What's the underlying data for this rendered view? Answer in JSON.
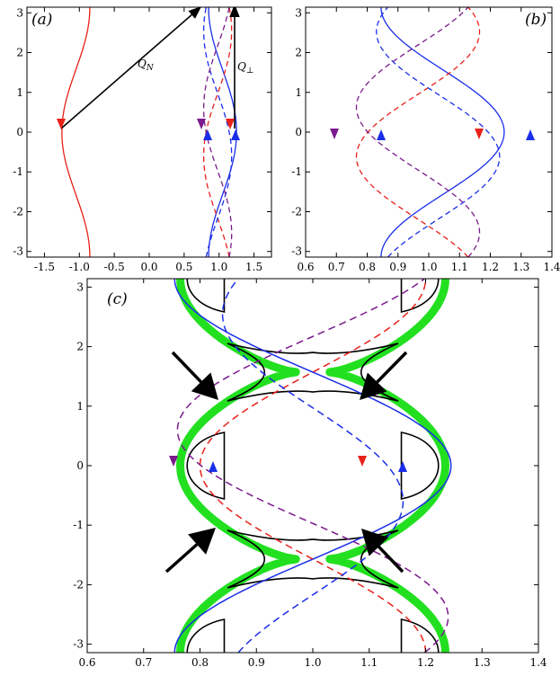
{
  "colors": {
    "red": "#e8201a",
    "blue": "#1a2ee8",
    "purple": "#7a1a8c",
    "green": "#22e020",
    "black": "#000000"
  },
  "chart_data": [
    {
      "id": "a",
      "type": "line",
      "panel_label": "(a)",
      "xlim": [
        -1.75,
        1.75
      ],
      "ylim": [
        -3.14159,
        3.14159
      ],
      "xticks": [
        "-1.5",
        "-1.0",
        "-0.5",
        "0.0",
        "0.5",
        "1.0",
        "1.5"
      ],
      "xtick_values": [
        -1.5,
        -1.0,
        -0.5,
        0.0,
        0.5,
        1.0,
        1.5
      ],
      "yticks": [
        "-3",
        "-2",
        "-1",
        "0",
        "1",
        "2",
        "3"
      ],
      "ytick_values": [
        -3,
        -2,
        -1,
        0,
        1,
        2,
        3
      ],
      "annotations": [
        "Q",
        "N",
        "Q",
        "⊥"
      ],
      "series": [
        {
          "color": "red",
          "style": "solid",
          "center": -1.05,
          "amp": 0.2,
          "phase": 3.14159
        },
        {
          "color": "blue",
          "style": "solid",
          "center": 1.05,
          "amp": 0.2,
          "phase": 0
        },
        {
          "color": "red",
          "style": "dashed",
          "center": 0.98,
          "amp": 0.2,
          "phase": 3.14159,
          "shift": 0.6
        },
        {
          "color": "blue",
          "style": "dashed",
          "center": 0.98,
          "amp": 0.2,
          "phase": 0,
          "shift": 0.6
        },
        {
          "color": "purple",
          "style": "dashed",
          "center": 0.98,
          "amp": 0.2,
          "phase": 3.14159,
          "shift": -0.6
        }
      ]
    },
    {
      "id": "b",
      "type": "line",
      "panel_label": "(b)",
      "xlim": [
        0.6,
        1.4
      ],
      "ylim": [
        -3.14159,
        3.14159
      ],
      "xticks": [
        "0.6",
        "0.7",
        "0.8",
        "0.9",
        "1.0",
        "1.1",
        "1.2",
        "1.3",
        "1.4"
      ],
      "xtick_values": [
        0.6,
        0.7,
        0.8,
        0.9,
        1.0,
        1.1,
        1.2,
        1.3,
        1.4
      ],
      "yticks": [
        "-3",
        "-2",
        "-1",
        "0",
        "1",
        "2",
        "3"
      ],
      "ytick_values": [
        -3,
        -2,
        -1,
        0,
        1,
        2,
        3
      ],
      "series": [
        {
          "color": "blue",
          "style": "solid",
          "center": 1.045,
          "amp": 0.2,
          "phase": 0
        },
        {
          "color": "red",
          "style": "dashed",
          "center": 0.965,
          "amp": 0.2,
          "phase": 3.14159,
          "shift": 0.62
        },
        {
          "color": "blue",
          "style": "dashed",
          "center": 1.03,
          "amp": 0.2,
          "phase": 0,
          "shift": 0.62
        },
        {
          "color": "purple",
          "style": "dashed",
          "center": 0.965,
          "amp": 0.2,
          "phase": 3.14159,
          "shift": -0.62
        }
      ]
    },
    {
      "id": "c",
      "type": "line",
      "panel_label": "(c)",
      "xlim": [
        0.6,
        1.4
      ],
      "ylim": [
        -3.14159,
        3.14159
      ],
      "xticks": [
        "0.6",
        "0.7",
        "0.8",
        "0.9",
        "1.0",
        "1.1",
        "1.2",
        "1.3",
        "1.4"
      ],
      "xtick_values": [
        0.6,
        0.7,
        0.8,
        0.9,
        1.0,
        1.1,
        1.2,
        1.3,
        1.4
      ],
      "yticks": [
        "-3",
        "-2",
        "-1",
        "0",
        "1",
        "2",
        "3"
      ],
      "ytick_values": [
        -3,
        -2,
        -1,
        0,
        1,
        2,
        3
      ]
    }
  ]
}
